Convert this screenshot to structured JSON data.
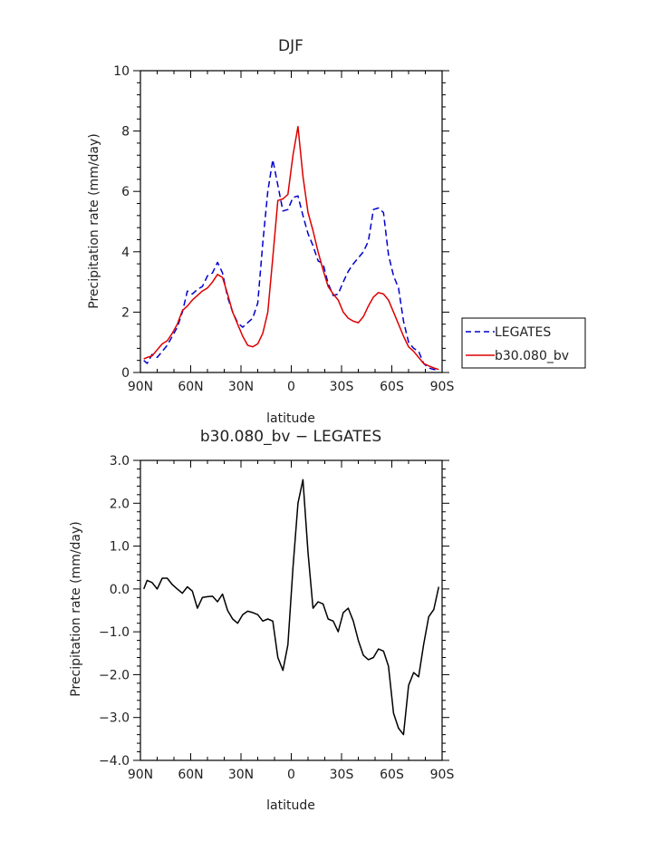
{
  "chart_data": [
    {
      "type": "line",
      "title": "DJF",
      "xlabel": "latitude",
      "ylabel": "Precipitation rate (mm/day)",
      "xlim": [
        -90,
        90
      ],
      "ylim": [
        0,
        10
      ],
      "xticks": [
        -90,
        -60,
        -30,
        0,
        30,
        60,
        90
      ],
      "xtick_labels": [
        "90N",
        "60N",
        "30N",
        "0",
        "30S",
        "60S",
        "90S"
      ],
      "yticks": [
        0,
        2,
        4,
        6,
        8,
        10
      ],
      "ytick_labels": [
        "0",
        "2",
        "4",
        "6",
        "8",
        "10"
      ],
      "grid": false,
      "legend_position": "right",
      "series": [
        {
          "name": "LEGATES",
          "color": "#0000cc",
          "dash": "dashed",
          "x": [
            -88,
            -86,
            -83,
            -80,
            -77,
            -74,
            -71,
            -68,
            -65,
            -62,
            -59,
            -56,
            -53,
            -50,
            -47,
            -44,
            -41,
            -38,
            -35,
            -32,
            -29,
            -26,
            -23,
            -20,
            -17,
            -14,
            -11,
            -8,
            -5,
            -2,
            1,
            4,
            7,
            10,
            13,
            16,
            19,
            22,
            25,
            28,
            31,
            34,
            37,
            40,
            43,
            46,
            49,
            52,
            55,
            58,
            61,
            64,
            67,
            70,
            73,
            76,
            79,
            82,
            85,
            88
          ],
          "y": [
            0.4,
            0.3,
            0.6,
            0.5,
            0.7,
            0.9,
            1.2,
            1.5,
            2.0,
            2.7,
            2.6,
            2.75,
            2.85,
            3.2,
            3.3,
            3.65,
            3.3,
            2.5,
            2.0,
            1.65,
            1.5,
            1.65,
            1.8,
            2.3,
            4.3,
            6.0,
            7.05,
            6.2,
            5.35,
            5.4,
            5.8,
            5.85,
            5.2,
            4.6,
            4.2,
            3.7,
            3.6,
            2.95,
            2.55,
            2.6,
            3.0,
            3.35,
            3.6,
            3.8,
            4.0,
            4.35,
            5.4,
            5.45,
            5.3,
            3.9,
            3.2,
            2.8,
            1.7,
            1.0,
            0.8,
            0.7,
            0.3,
            0.15,
            0.1,
            0.1
          ]
        },
        {
          "name": "b30.080_bv",
          "color": "#dd0000",
          "dash": "solid",
          "x": [
            -88,
            -86,
            -83,
            -80,
            -77,
            -74,
            -71,
            -68,
            -65,
            -62,
            -59,
            -56,
            -53,
            -50,
            -47,
            -44,
            -41,
            -38,
            -35,
            -32,
            -29,
            -26,
            -23,
            -20,
            -17,
            -14,
            -11,
            -8,
            -5,
            -2,
            1,
            4,
            7,
            10,
            13,
            16,
            19,
            22,
            25,
            28,
            31,
            34,
            37,
            40,
            43,
            46,
            49,
            52,
            55,
            58,
            61,
            64,
            67,
            70,
            73,
            76,
            79,
            82,
            85,
            88
          ],
          "y": [
            0.45,
            0.5,
            0.55,
            0.75,
            0.95,
            1.05,
            1.3,
            1.6,
            2.05,
            2.2,
            2.4,
            2.55,
            2.7,
            2.8,
            3.0,
            3.25,
            3.15,
            2.6,
            2.0,
            1.6,
            1.2,
            0.9,
            0.85,
            0.95,
            1.3,
            2.0,
            3.8,
            5.7,
            5.75,
            5.9,
            7.2,
            8.15,
            6.5,
            5.3,
            4.7,
            4.0,
            3.4,
            2.85,
            2.6,
            2.4,
            2.0,
            1.8,
            1.7,
            1.65,
            1.85,
            2.2,
            2.5,
            2.65,
            2.6,
            2.4,
            2.0,
            1.6,
            1.2,
            0.85,
            0.7,
            0.5,
            0.3,
            0.22,
            0.15,
            0.1
          ]
        }
      ]
    },
    {
      "type": "line",
      "title": "b30.080_bv − LEGATES",
      "xlabel": "latitude",
      "ylabel": "Precipitation rate (mm/day)",
      "xlim": [
        -90,
        90
      ],
      "ylim": [
        -4,
        3
      ],
      "xticks": [
        -90,
        -60,
        -30,
        0,
        30,
        60,
        90
      ],
      "xtick_labels": [
        "90N",
        "60N",
        "30N",
        "0",
        "30S",
        "60S",
        "90S"
      ],
      "yticks": [
        -4,
        -3,
        -2,
        -1,
        0,
        1,
        2,
        3
      ],
      "ytick_labels": [
        "−4.0",
        "−3.0",
        "−2.0",
        "−1.0",
        "0.0",
        "1.0",
        "2.0",
        "3.0"
      ],
      "grid": false,
      "series": [
        {
          "color": "#000000",
          "dash": "solid",
          "x": [
            -88,
            -86,
            -83,
            -80,
            -77,
            -74,
            -71,
            -68,
            -65,
            -62,
            -59,
            -56,
            -53,
            -50,
            -47,
            -44,
            -41,
            -38,
            -35,
            -32,
            -29,
            -26,
            -23,
            -20,
            -17,
            -14,
            -11,
            -8,
            -5,
            -2,
            1,
            4,
            7,
            10,
            13,
            16,
            19,
            22,
            25,
            28,
            31,
            34,
            37,
            40,
            43,
            46,
            49,
            52,
            55,
            58,
            61,
            64,
            67,
            70,
            73,
            76,
            79,
            82,
            85,
            88
          ],
          "y": [
            0.0,
            0.2,
            0.15,
            0.0,
            0.25,
            0.25,
            0.1,
            0.0,
            -0.1,
            0.05,
            -0.05,
            -0.45,
            -0.2,
            -0.18,
            -0.17,
            -0.3,
            -0.12,
            -0.5,
            -0.7,
            -0.8,
            -0.6,
            -0.52,
            -0.55,
            -0.6,
            -0.75,
            -0.7,
            -0.75,
            -1.6,
            -1.9,
            -1.3,
            0.5,
            2.0,
            2.55,
            0.85,
            -0.45,
            -0.3,
            -0.35,
            -0.7,
            -0.75,
            -1.0,
            -0.55,
            -0.45,
            -0.75,
            -1.2,
            -1.55,
            -1.65,
            -1.6,
            -1.4,
            -1.45,
            -1.8,
            -2.9,
            -3.25,
            -3.4,
            -2.25,
            -1.95,
            -2.05,
            -1.3,
            -0.65,
            -0.48,
            0.05
          ]
        }
      ]
    }
  ]
}
